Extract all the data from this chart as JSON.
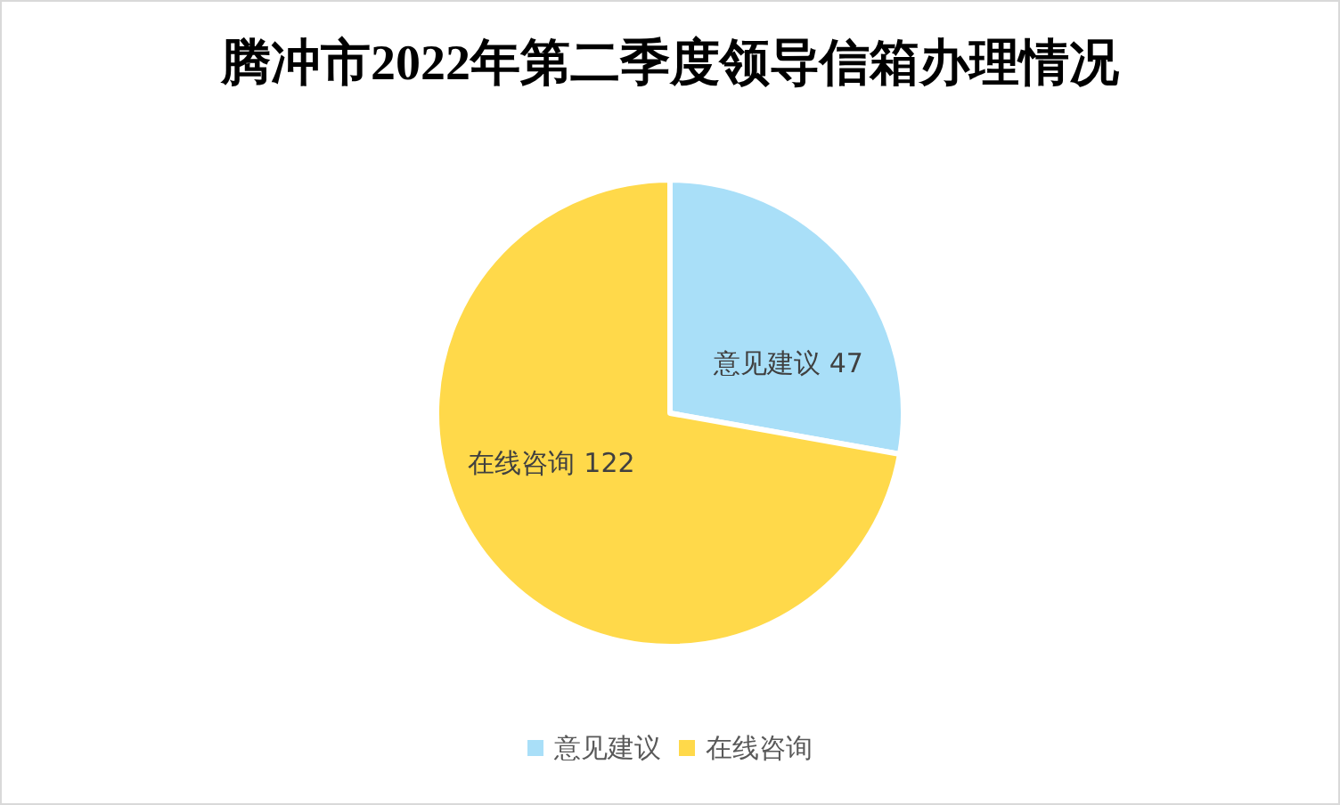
{
  "chart_data": {
    "type": "pie",
    "title": "腾冲市2022年第二季度领导信箱办理情况",
    "categories": [
      "意见建议",
      "在线咨询"
    ],
    "values": [
      47,
      122
    ],
    "colors": [
      "#a9dff8",
      "#ffd94a"
    ],
    "data_labels": true,
    "legend": "bottom"
  }
}
